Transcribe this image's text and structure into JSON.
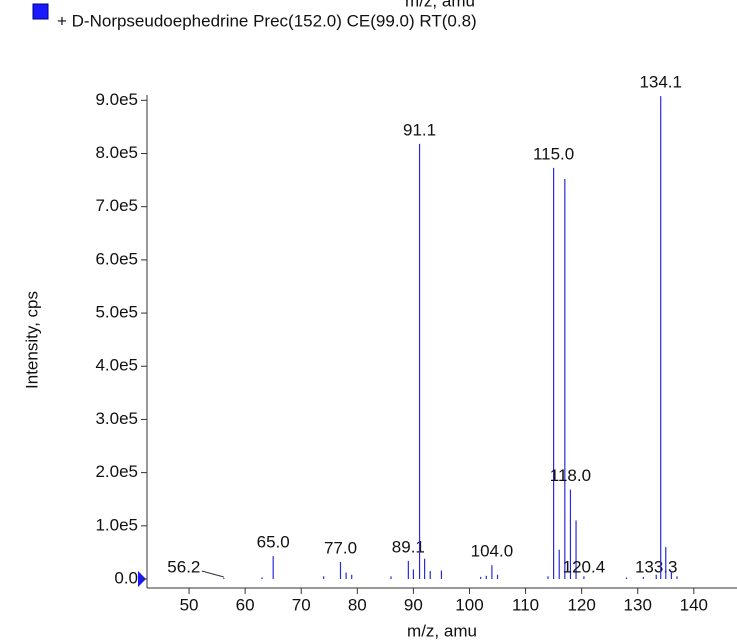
{
  "chart_data": {
    "type": "spectrum",
    "top_label": "m/z, amu",
    "title": "+ D-Norpseudoephedrine Prec(152.0) CE(99.0) RT(0.8)",
    "x_label": "m/z, amu",
    "y_label": "Intensity, cps",
    "xlim": [
      42.5,
      147.7
    ],
    "xticks": [
      50,
      60,
      70,
      80,
      90,
      100,
      110,
      120,
      130,
      140
    ],
    "ylim": [
      0,
      910000
    ],
    "yticks": [
      {
        "value": 0,
        "label": "0.0"
      },
      {
        "value": 100000,
        "label": "1.0e5"
      },
      {
        "value": 200000,
        "label": "2.0e5"
      },
      {
        "value": 300000,
        "label": "3.0e5"
      },
      {
        "value": 400000,
        "label": "4.0e5"
      },
      {
        "value": 500000,
        "label": "5.0e5"
      },
      {
        "value": 600000,
        "label": "6.0e5"
      },
      {
        "value": 700000,
        "label": "7.0e5"
      },
      {
        "value": 800000,
        "label": "8.0e5"
      },
      {
        "value": 900000,
        "label": "9.0e5"
      }
    ],
    "series": [
      {
        "name": "D-Norpseudoephedrine",
        "color": "#2a2ad8",
        "x": [
          56.2,
          63,
          65.0,
          74,
          77.0,
          78,
          79,
          86,
          89.1,
          90,
          91.1,
          92,
          93,
          95,
          102,
          103,
          104.0,
          105,
          114,
          115.0,
          116,
          117,
          118.0,
          119,
          120.4,
          128,
          131,
          133.3,
          134.1,
          135,
          136,
          137
        ],
        "values": [
          2000,
          3000,
          43000,
          5000,
          32000,
          12000,
          8000,
          5000,
          34000,
          18000,
          818000,
          38000,
          15000,
          16000,
          4000,
          6000,
          26000,
          8000,
          5000,
          773000,
          55000,
          752000,
          168000,
          110000,
          5000,
          3000,
          4000,
          8000,
          908000,
          60000,
          15000,
          5000
        ],
        "labels": [
          "56.2",
          null,
          "65.0",
          null,
          "77.0",
          null,
          null,
          null,
          "89.1",
          null,
          "91.1",
          null,
          null,
          null,
          null,
          null,
          "104.0",
          null,
          null,
          "115.0",
          null,
          null,
          "118.0",
          null,
          "120.4",
          null,
          null,
          "133.3",
          "134.1",
          null,
          null,
          null
        ]
      }
    ]
  }
}
